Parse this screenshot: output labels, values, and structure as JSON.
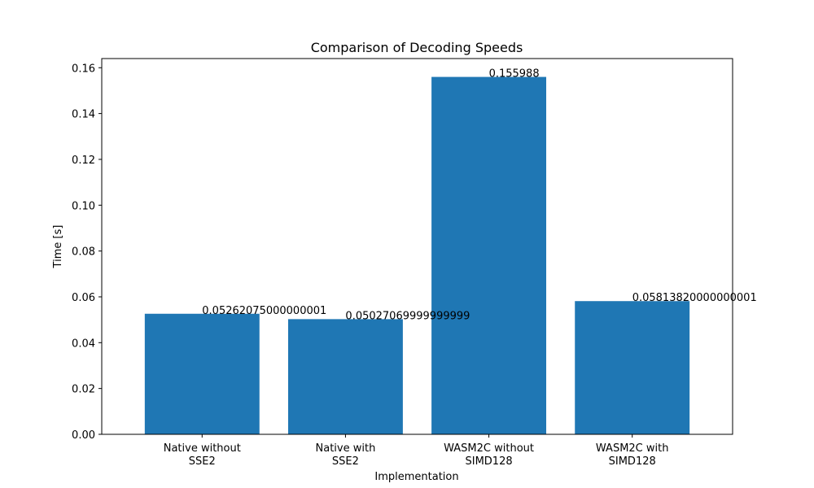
{
  "chart_data": {
    "type": "bar",
    "title": "Comparison of Decoding Speeds",
    "xlabel": "Implementation",
    "ylabel": "Time [s]",
    "categories": [
      [
        "Native without",
        "SSE2"
      ],
      [
        "Native with",
        "SSE2"
      ],
      [
        "WASM2C without",
        "SIMD128"
      ],
      [
        "WASM2C with",
        "SIMD128"
      ]
    ],
    "values": [
      0.05262075000000001,
      0.05027069999999999,
      0.155988,
      0.05813820000000001
    ],
    "value_labels": [
      "0.05262075000000001",
      "0.05027069999999999",
      "0.155988",
      "0.05813820000000001"
    ],
    "ylim": [
      0,
      0.164
    ],
    "yticks": [
      0.0,
      0.02,
      0.04,
      0.06,
      0.08,
      0.1,
      0.12,
      0.14,
      0.16
    ],
    "ytick_labels": [
      "0.00",
      "0.02",
      "0.04",
      "0.06",
      "0.08",
      "0.10",
      "0.12",
      "0.14",
      "0.16"
    ],
    "bar_color": "#1f77b4",
    "grid": false,
    "legend": "none"
  }
}
